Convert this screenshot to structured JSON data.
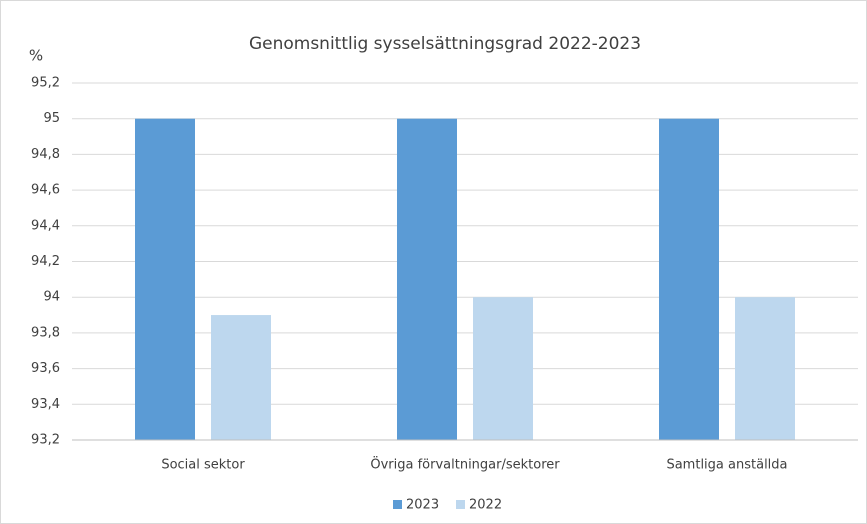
{
  "chart_data": {
    "type": "bar",
    "title": "Genomsnittlig sysselsättningsgrad 2022-2023",
    "y_label": "%",
    "categories": [
      "Social sektor",
      "Övriga förvaltningar/sektorer",
      "Samtliga anställda"
    ],
    "series": [
      {
        "name": "2023",
        "color": "#5b9bd5",
        "values": [
          95,
          95,
          95
        ]
      },
      {
        "name": "2022",
        "color": "#bdd7ee",
        "values": [
          93.9,
          94,
          94
        ]
      }
    ],
    "ylim": [
      93.2,
      95.2
    ],
    "yticks": [
      {
        "value": 93.2,
        "label": "93,2"
      },
      {
        "value": 93.4,
        "label": "93,4"
      },
      {
        "value": 93.6,
        "label": "93,6"
      },
      {
        "value": 93.8,
        "label": "93,8"
      },
      94,
      {
        "value": 94.2,
        "label": "94,2"
      },
      {
        "value": 94.4,
        "label": "94,4"
      },
      {
        "value": 94.6,
        "label": "94,6"
      },
      {
        "value": 94.8,
        "label": "94,8"
      },
      95,
      {
        "value": 95.2,
        "label": "95,2"
      }
    ],
    "grid": true,
    "legend": "bottom"
  }
}
